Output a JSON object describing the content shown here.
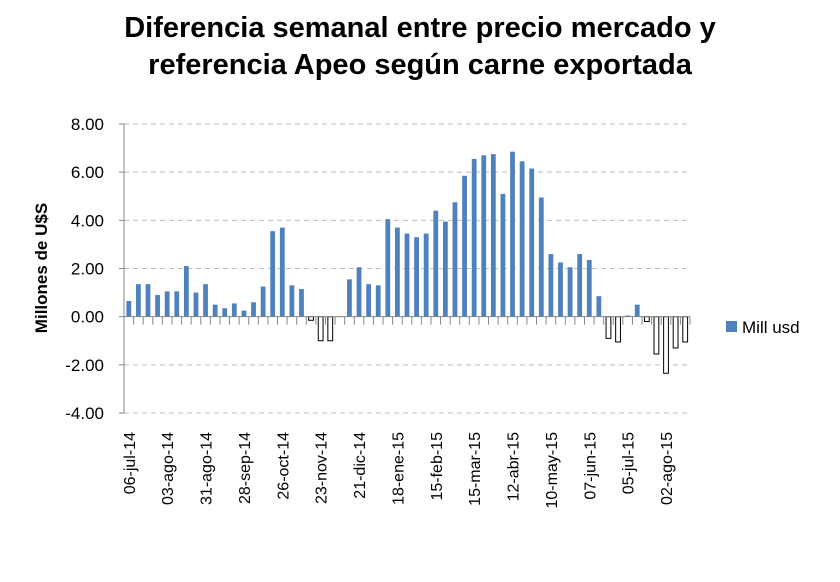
{
  "chart_data": {
    "type": "bar",
    "title": [
      "Diferencia semanal entre precio mercado y",
      "referencia Apeo según carne exportada"
    ],
    "ylabel": "Millones de U$S",
    "xlabel": "",
    "ylim": [
      -4,
      8
    ],
    "yticks": [
      "8.00",
      "6.00",
      "4.00",
      "2.00",
      "0.00",
      "-2.00",
      "-4.00"
    ],
    "ytick_values": [
      8,
      6,
      4,
      2,
      0,
      -2,
      -4
    ],
    "grid": true,
    "legend_position": "right",
    "x_labels": [
      "06-jul-14",
      "03-ago-14",
      "31-ago-14",
      "28-sep-14",
      "26-oct-14",
      "23-nov-14",
      "21-dic-14",
      "18-ene-15",
      "15-feb-15",
      "15-mar-15",
      "12-abr-15",
      "10-may-15",
      "07-jun-15",
      "05-jul-15",
      "02-ago-15"
    ],
    "x_label_positions": [
      0,
      4,
      8,
      12,
      16,
      20,
      24,
      28,
      32,
      36,
      40,
      44,
      48,
      52,
      56
    ],
    "series": [
      {
        "name": "Mill usd",
        "color": "#4f81bd",
        "negative_color": "#ffffff",
        "negative_border": "#000000",
        "values": [
          0.65,
          1.35,
          1.35,
          0.9,
          1.05,
          1.05,
          2.1,
          1.0,
          1.35,
          0.5,
          0.35,
          0.55,
          0.25,
          0.6,
          1.25,
          3.55,
          3.7,
          1.3,
          1.15,
          -0.15,
          -1.0,
          -1.0,
          0.0,
          1.55,
          2.05,
          1.35,
          1.3,
          4.05,
          3.7,
          3.45,
          3.3,
          3.45,
          4.4,
          3.95,
          4.75,
          5.85,
          6.55,
          6.7,
          6.75,
          5.1,
          6.85,
          6.45,
          6.15,
          4.95,
          2.6,
          2.25,
          2.05,
          2.6,
          2.35,
          0.85,
          -0.9,
          -1.05,
          0.05,
          0.5,
          -0.2,
          -1.55,
          -2.35,
          -1.3,
          -1.05
        ]
      }
    ]
  }
}
